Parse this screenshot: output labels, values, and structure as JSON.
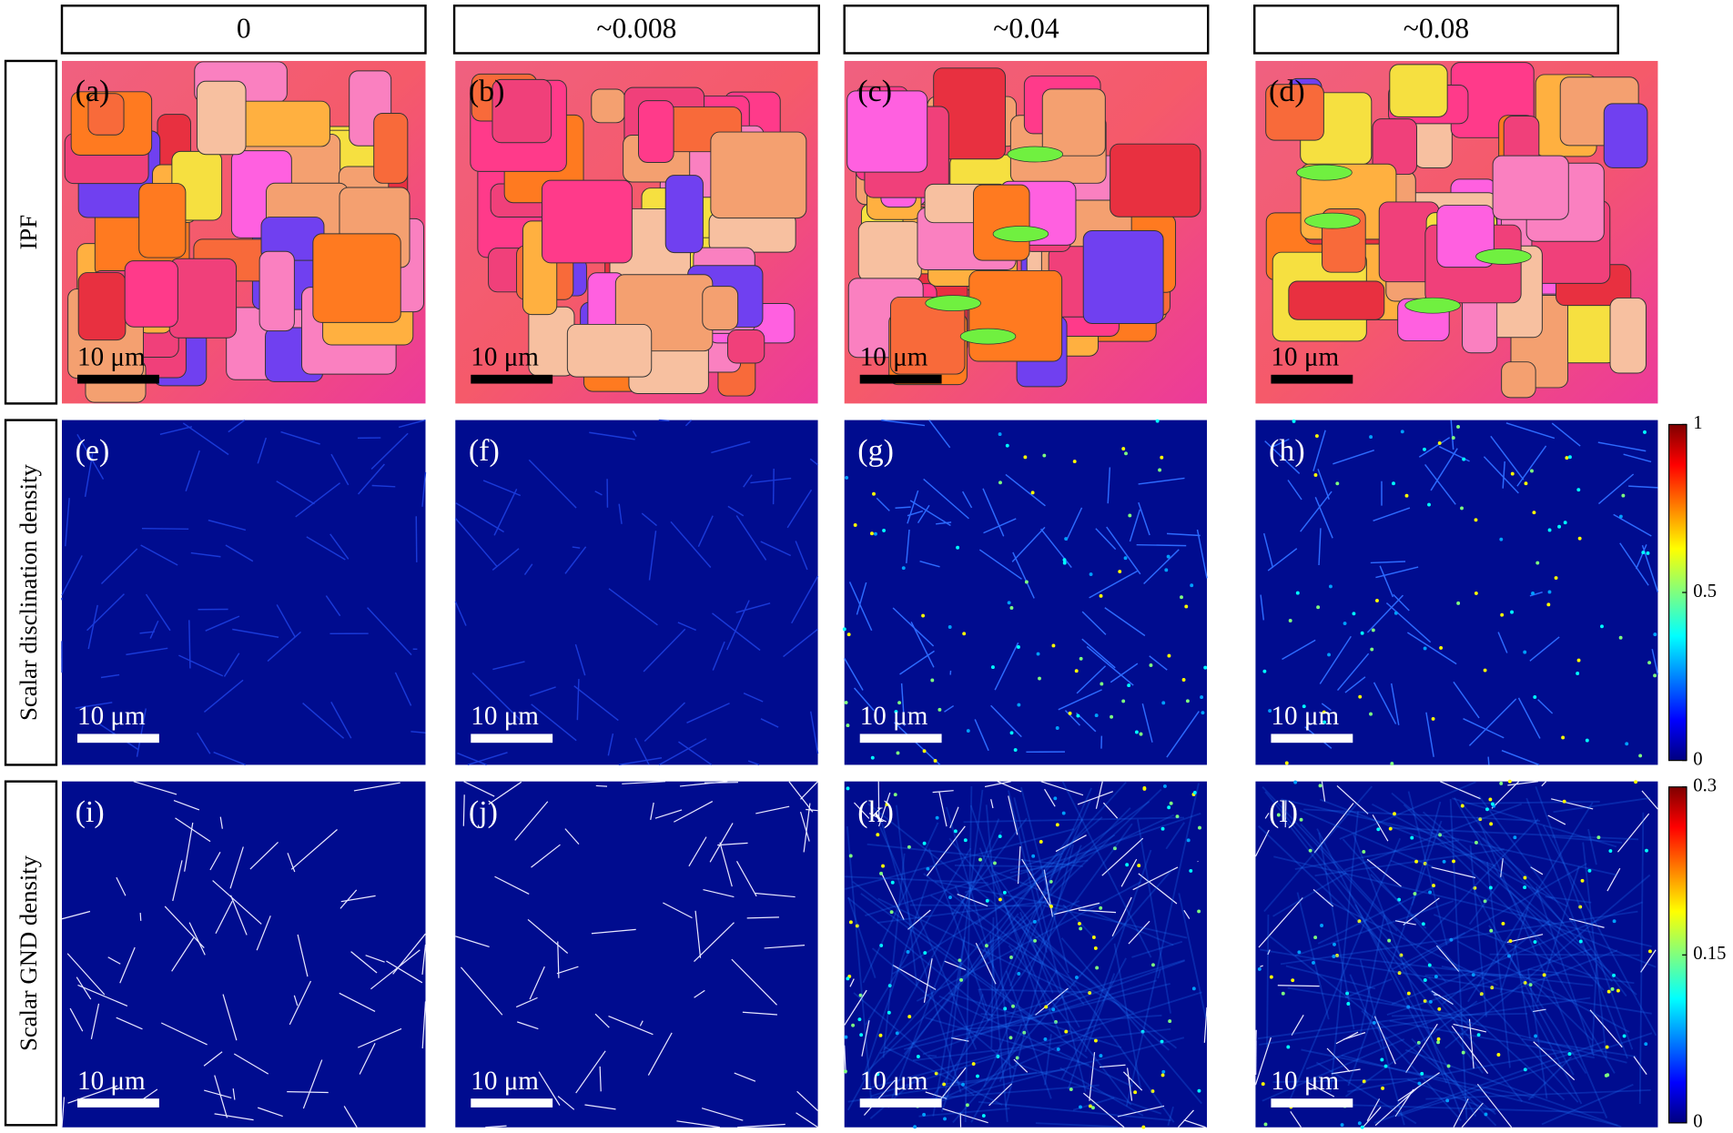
{
  "column_headers": [
    "0",
    "~0.008",
    "~0.04",
    "~0.08"
  ],
  "row_labels": [
    "IPF",
    "Scalar disclination density",
    "Scalar GND density"
  ],
  "panels": [
    [
      {
        "label": "(a)",
        "scale_bar": "10 μm"
      },
      {
        "label": "(b)",
        "scale_bar": "10 μm"
      },
      {
        "label": "(c)",
        "scale_bar": "10 μm"
      },
      {
        "label": "(d)",
        "scale_bar": "10 μm"
      }
    ],
    [
      {
        "label": "(e)",
        "scale_bar": "10 μm"
      },
      {
        "label": "(f)",
        "scale_bar": "10 μm"
      },
      {
        "label": "(g)",
        "scale_bar": "10 μm"
      },
      {
        "label": "(h)",
        "scale_bar": "10 μm"
      }
    ],
    [
      {
        "label": "(i)",
        "scale_bar": "10 μm"
      },
      {
        "label": "(j)",
        "scale_bar": "10 μm"
      },
      {
        "label": "(k)",
        "scale_bar": "10 μm"
      },
      {
        "label": "(l)",
        "scale_bar": "10 μm"
      }
    ]
  ],
  "colorbars": [
    {
      "ticks": [
        "1",
        "0.5",
        "0"
      ]
    },
    {
      "ticks": [
        "0.3",
        "0.15",
        "0"
      ]
    }
  ]
}
